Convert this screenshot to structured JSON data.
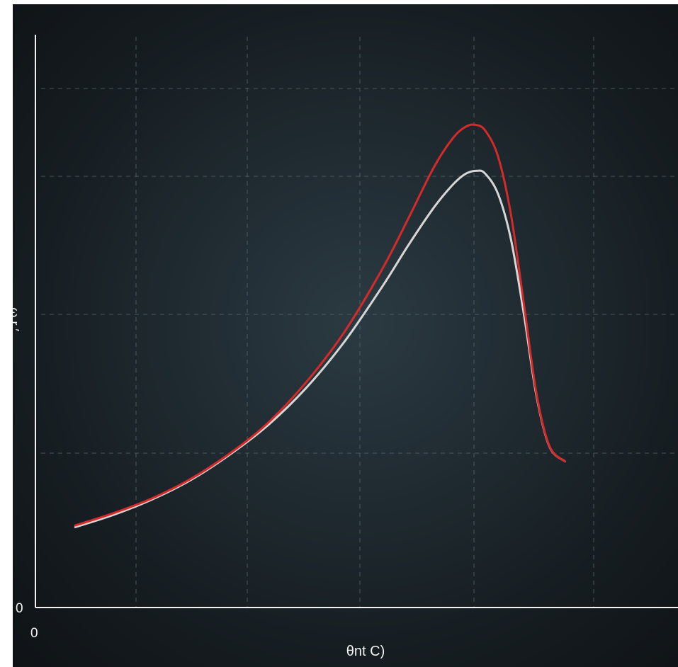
{
  "chart_data": {
    "type": "line",
    "title": "",
    "xlabel": "θnt C)",
    "ylabel": "ω r ′",
    "xlim": [
      0,
      100
    ],
    "ylim": [
      0,
      100
    ],
    "x_tick_labels": [
      "0"
    ],
    "y_tick_labels": [
      "0"
    ],
    "grid": true,
    "legend": "none",
    "background": "#1c2529",
    "series": [
      {
        "color": "#d42a2a",
        "points": [
          [
            6.2,
            14.5
          ],
          [
            12,
            16.6
          ],
          [
            18,
            19.2
          ],
          [
            24,
            22.6
          ],
          [
            30,
            27.0
          ],
          [
            36,
            32.4
          ],
          [
            42,
            39.6
          ],
          [
            48,
            48.5
          ],
          [
            54,
            59.8
          ],
          [
            58,
            68.6
          ],
          [
            62,
            77.7
          ],
          [
            65,
            82.9
          ],
          [
            67,
            84.9
          ],
          [
            68.5,
            85.2
          ],
          [
            70,
            84.2
          ],
          [
            72,
            79.6
          ],
          [
            74,
            69.4
          ],
          [
            76,
            53.7
          ],
          [
            78,
            37.6
          ],
          [
            80,
            28.5
          ],
          [
            82.4,
            25.8
          ]
        ]
      },
      {
        "color": "#d6d6d6",
        "points": [
          [
            6.2,
            14.2
          ],
          [
            12,
            16.3
          ],
          [
            18,
            19.0
          ],
          [
            24,
            22.4
          ],
          [
            30,
            26.8
          ],
          [
            36,
            32.0
          ],
          [
            42,
            38.6
          ],
          [
            48,
            46.8
          ],
          [
            54,
            56.7
          ],
          [
            58,
            63.9
          ],
          [
            62,
            70.6
          ],
          [
            65,
            74.7
          ],
          [
            67,
            76.6
          ],
          [
            68.7,
            77.1
          ],
          [
            70,
            76.6
          ],
          [
            72,
            73.0
          ],
          [
            74,
            65.0
          ],
          [
            76,
            51.9
          ],
          [
            78,
            37.2
          ],
          [
            80,
            28.4
          ],
          [
            82.4,
            25.8
          ]
        ]
      }
    ]
  }
}
